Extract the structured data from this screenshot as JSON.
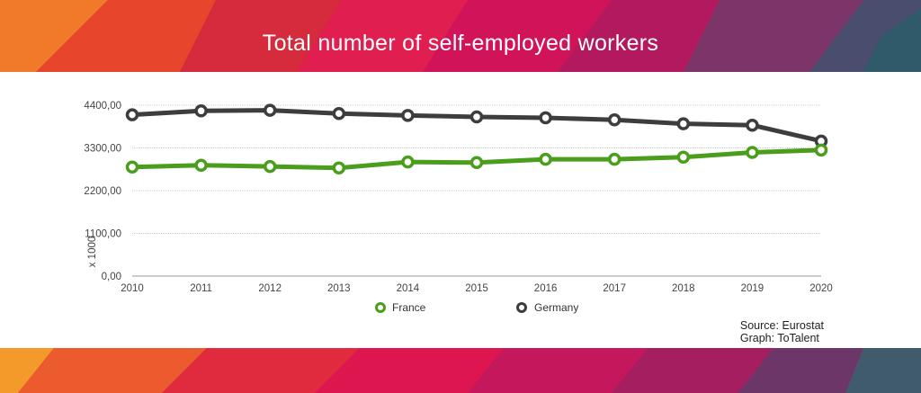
{
  "title": "Total number of self-employed workers",
  "source": "Source: Eurostat",
  "graph_credit": "Graph: ToTalent",
  "colors": {
    "France": "#4a9e1c",
    "Germany": "#3d3d3d"
  },
  "chart_data": {
    "type": "line",
    "title": "Total number of self-employed workers",
    "xlabel": "",
    "ylabel": "x 1000",
    "x": [
      "2010",
      "2011",
      "2012",
      "2013",
      "2014",
      "2015",
      "2016",
      "2017",
      "2018",
      "2019",
      "2020"
    ],
    "ylim": [
      0,
      4400
    ],
    "yticks": [
      0,
      1100,
      2200,
      3300,
      4400
    ],
    "ytick_labels": [
      "0,00",
      "1100,00",
      "2200,00",
      "3300,00",
      "4400,00"
    ],
    "grid": true,
    "legend_position": "bottom",
    "series": [
      {
        "name": "France",
        "values": [
          2808,
          2854,
          2823,
          2785,
          2938,
          2923,
          3008,
          3008,
          3062,
          3185,
          3246
        ]
      },
      {
        "name": "Germany",
        "values": [
          4154,
          4254,
          4269,
          4185,
          4138,
          4100,
          4077,
          4023,
          3923,
          3885,
          3477
        ]
      }
    ]
  }
}
